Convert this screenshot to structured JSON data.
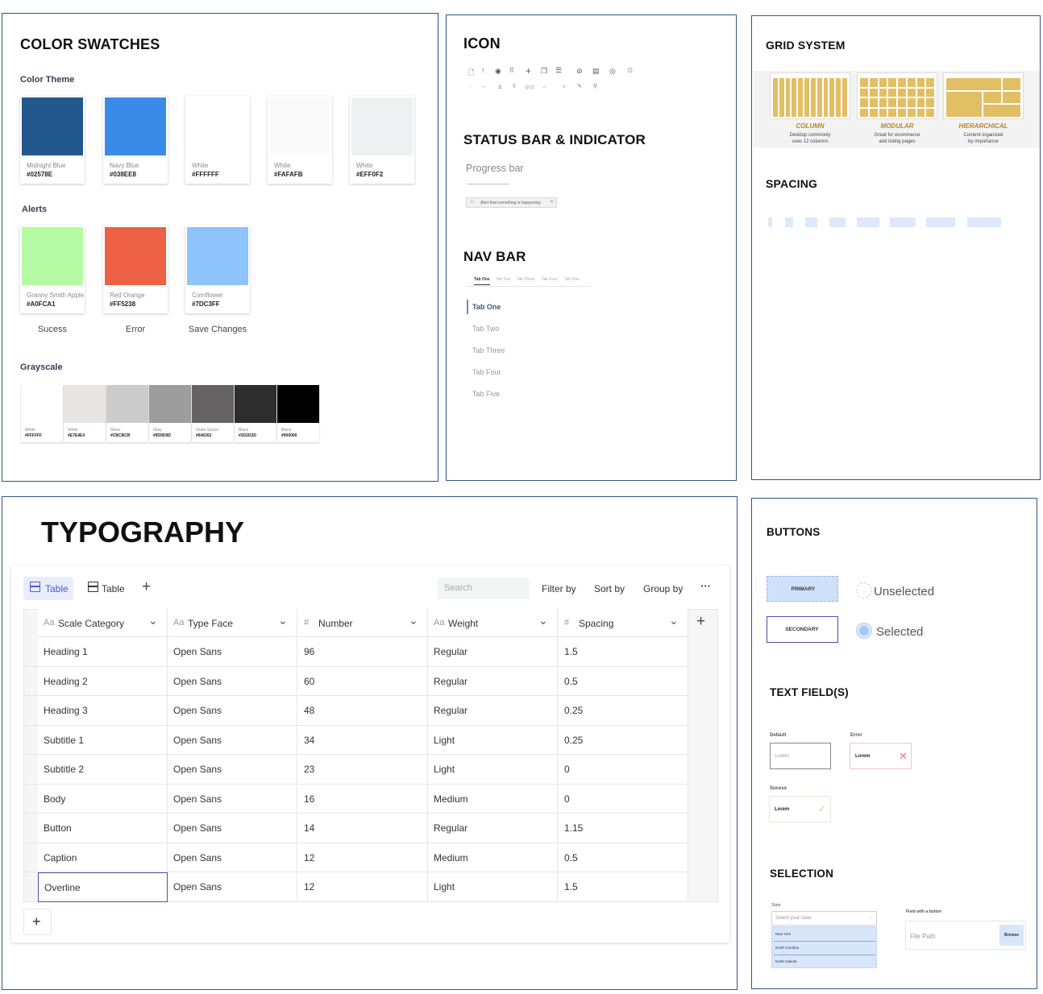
{
  "color_swatches": {
    "title": "COLOR SWATCHES",
    "theme_label": "Color Theme",
    "theme": [
      {
        "name": "Midnight Blue",
        "hex": "#02578E",
        "color": "#22578e"
      },
      {
        "name": "Navy Blue",
        "hex": "#038EE8",
        "color": "#3a8be8"
      },
      {
        "name": "White",
        "hex": "#FFFFFF",
        "color": "#ffffff"
      },
      {
        "name": "White",
        "hex": "#FAFAFB",
        "color": "#fafafb"
      },
      {
        "name": "White",
        "hex": "#EFF0F2",
        "color": "#eff0f2"
      }
    ],
    "alerts_label": "Alerts",
    "alerts": [
      {
        "name": "Granny Smith Apple",
        "hex": "#A0FCA1",
        "color": "#b6fba3",
        "label": "Sucess"
      },
      {
        "name": "Red Orange",
        "hex": "#FF5238",
        "color": "#ee6044",
        "label": "Error"
      },
      {
        "name": "Cornflower",
        "hex": "#7DC3FF",
        "color": "#8ec3fb",
        "label": "Save Changes"
      }
    ],
    "grayscale_label": "Grayscale",
    "grayscale": [
      {
        "name": "White",
        "hex": "#FFFFFF",
        "color": "#ffffff"
      },
      {
        "name": "White",
        "hex": "#E7E4E4",
        "color": "#e7e4e4"
      },
      {
        "name": "Silver",
        "hex": "#CBCBCB",
        "color": "#cbcbcb"
      },
      {
        "name": "Gray",
        "hex": "#9D9D9D",
        "color": "#9d9d9d"
      },
      {
        "name": "Outer Space",
        "hex": "#646262",
        "color": "#646262"
      },
      {
        "name": "Black",
        "hex": "#2D2D2D",
        "color": "#2d2d2d"
      },
      {
        "name": "Black",
        "hex": "#000000",
        "color": "#000000"
      }
    ]
  },
  "icon_panel": {
    "title": "ICON",
    "status_title": "STATUS BAR & INDICATOR",
    "progress_label": "Progress bar",
    "alert_text": "Alert that something is happening.",
    "nav_title": "NAV BAR",
    "tabs": [
      "Tab One",
      "Tab Two",
      "Tab Three",
      "Tab Four",
      "Tab Five"
    ]
  },
  "grid_panel": {
    "title": "GRID SYSTEM",
    "layouts": [
      {
        "name": "COLUMN",
        "desc1": "Desktop commonly",
        "desc2": "uses 12 columns"
      },
      {
        "name": "MODULAR",
        "desc1": "Great for ecommerce",
        "desc2": "and listing pages"
      },
      {
        "name": "HIERARCHICAL",
        "desc1": "Content organized",
        "desc2": "by importance"
      }
    ],
    "spacing_title": "SPACING"
  },
  "typography": {
    "title": "TYPOGRAPHY",
    "view_tab_active": "Table",
    "view_tab": "Table",
    "search_placeholder": "Search",
    "filter": "Filter by",
    "sort": "Sort by",
    "group": "Group by",
    "more": "···",
    "columns": [
      {
        "prefix": "Aa",
        "label": "Scale Category"
      },
      {
        "prefix": "Aa",
        "label": "Type Face"
      },
      {
        "prefix": "#",
        "label": "Number"
      },
      {
        "prefix": "Aa",
        "label": "Weight"
      },
      {
        "prefix": "#",
        "label": "Spacing"
      }
    ],
    "rows": [
      [
        "Heading 1",
        "Open Sans",
        "96",
        "Regular",
        "1.5"
      ],
      [
        "Heading 2",
        "Open Sans",
        "60",
        "Regular",
        "0.5"
      ],
      [
        "Heading 3",
        "Open Sans",
        "48",
        "Regular",
        "0.25"
      ],
      [
        "Subtitle 1",
        "Open Sans",
        "34",
        "Light",
        "0.25"
      ],
      [
        "Subtitle 2",
        "Open Sans",
        "23",
        "Light",
        "0"
      ],
      [
        "Body",
        "Open Sans",
        "16",
        "Medium",
        "0"
      ],
      [
        "Button",
        "Open Sans",
        "14",
        "Regular",
        "1.15"
      ],
      [
        "Caption",
        "Open Sans",
        "12",
        "Medium",
        "0.5"
      ],
      [
        "Overline",
        "Open Sans",
        "12",
        "Light",
        "1.5"
      ]
    ]
  },
  "buttons_panel": {
    "title": "BUTTONS",
    "primary": "PRIMARY",
    "secondary": "SECONDARY",
    "unselected": "Unselected",
    "selected": "Selected",
    "text_fields_title": "TEXT FIELD(S)",
    "default_label": "Default",
    "default_value": "Lorem",
    "error_label": "Error",
    "error_value": "Lorem",
    "success_label": "Sucess",
    "success_value": "Lorem",
    "selection_title": "SELECTION",
    "state_label": "State",
    "state_placeholder": "Select your state",
    "state_options": [
      "New York",
      "North Carolina",
      "North Dakota"
    ],
    "file_label": "Field with a button",
    "file_placeholder": "File Path",
    "browse": "Browse"
  }
}
